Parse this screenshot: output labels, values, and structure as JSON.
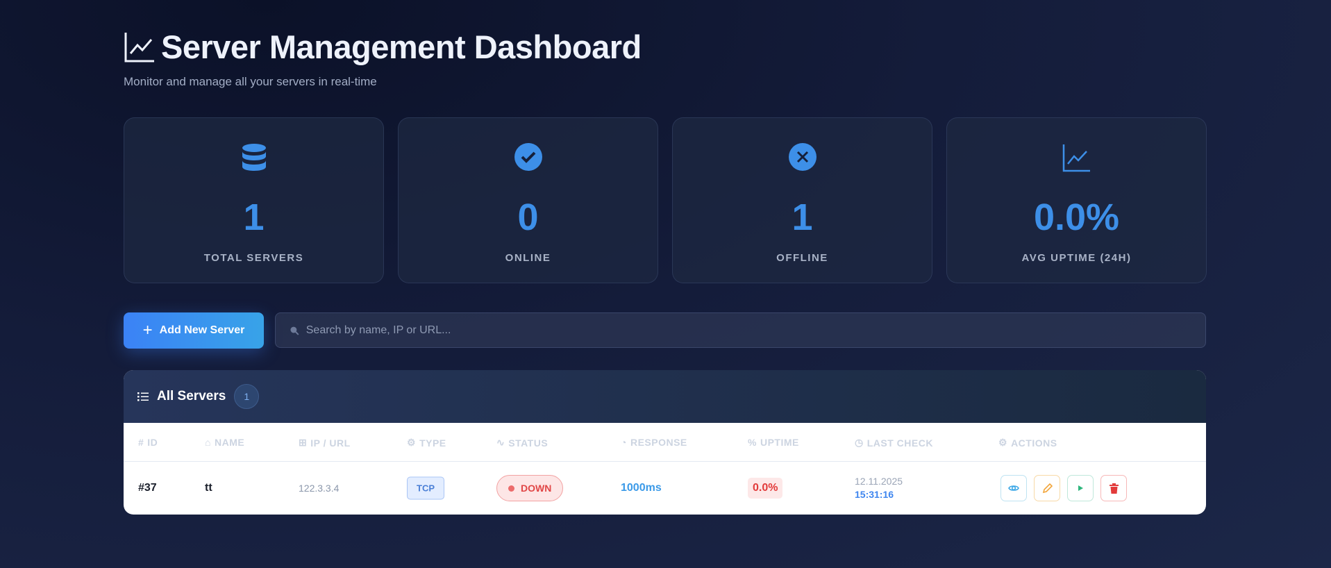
{
  "header": {
    "title": "Server Management Dashboard",
    "subtitle": "Monitor and manage all your servers in real-time"
  },
  "stats": [
    {
      "icon": "database-icon",
      "value": "1",
      "label": "TOTAL SERVERS"
    },
    {
      "icon": "check-circle-icon",
      "value": "0",
      "label": "ONLINE"
    },
    {
      "icon": "x-circle-icon",
      "value": "1",
      "label": "OFFLINE"
    },
    {
      "icon": "chart-line-icon",
      "value": "0.0%",
      "label": "AVG UPTIME (24H)"
    }
  ],
  "toolbar": {
    "add_label": "Add New Server",
    "search_placeholder": "Search by name, IP or URL..."
  },
  "table": {
    "title": "All Servers",
    "count": "1",
    "columns": [
      "ID",
      "NAME",
      "IP / URL",
      "TYPE",
      "STATUS",
      "RESPONSE",
      "UPTIME",
      "LAST CHECK",
      "ACTIONS"
    ],
    "rows": [
      {
        "id": "#37",
        "name": "tt",
        "ip": "122.3.3.4",
        "type": "TCP",
        "status": "DOWN",
        "response": "1000ms",
        "uptime": "0.0%",
        "date": "12.11.2025",
        "time": "15:31:16"
      }
    ]
  },
  "colors": {
    "accent": "#3d8fe8",
    "danger": "#e14646",
    "warning": "#f2a53a",
    "success": "#2eb67d"
  }
}
